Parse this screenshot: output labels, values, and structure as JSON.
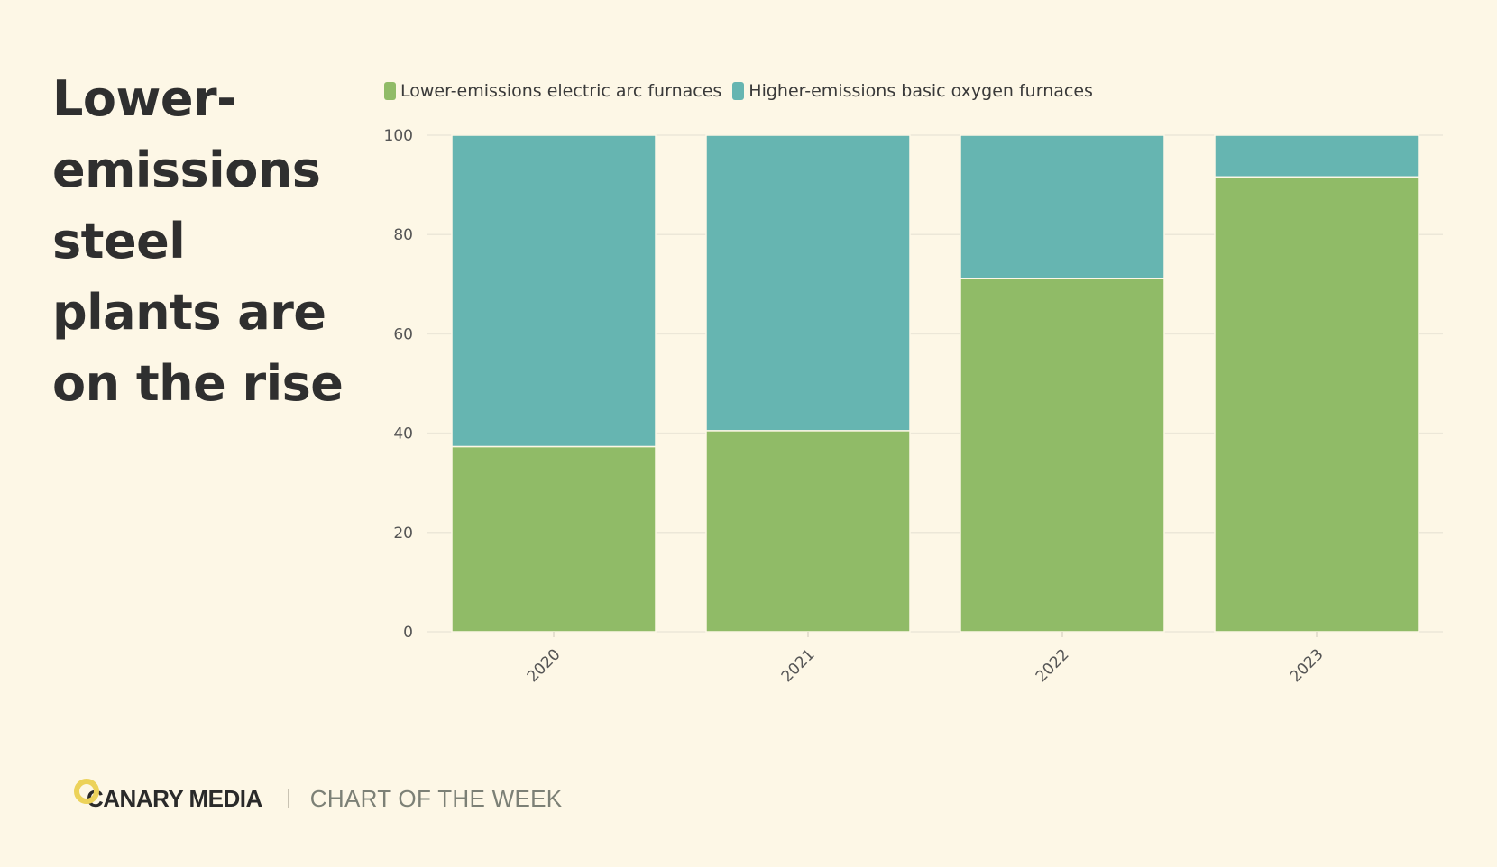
{
  "headline": {
    "lines": [
      "Lower-",
      "emissions",
      "steel",
      "plants are",
      "on the rise"
    ]
  },
  "legend": {
    "items": [
      {
        "label": "Lower-emissions electric arc furnaces",
        "color": "#90bb67"
      },
      {
        "label": "Higher-emissions basic oxygen furnaces",
        "color": "#66b5b1"
      }
    ]
  },
  "chart_data": {
    "type": "bar",
    "stacked": true,
    "categories": [
      "2020",
      "2021",
      "2022",
      "2023"
    ],
    "series": [
      {
        "name": "Lower-emissions electric arc furnaces",
        "color": "#90bb67",
        "values": [
          37.3,
          40.5,
          71.1,
          91.6
        ]
      },
      {
        "name": "Higher-emissions basic oxygen furnaces",
        "color": "#66b5b1",
        "values": [
          62.7,
          59.5,
          28.9,
          8.4
        ]
      }
    ],
    "ylim": [
      0,
      100
    ],
    "yticks": [
      0,
      20,
      40,
      60,
      80,
      100
    ],
    "title": "Lower-emissions steel plants are on the rise",
    "xlabel": "",
    "ylabel": "",
    "grid": true,
    "legend_position": "top-left"
  },
  "footer": {
    "brand": "CANARY MEDIA",
    "tagline": "CHART OF THE WEEK",
    "logo_color": "#ecd25a"
  }
}
